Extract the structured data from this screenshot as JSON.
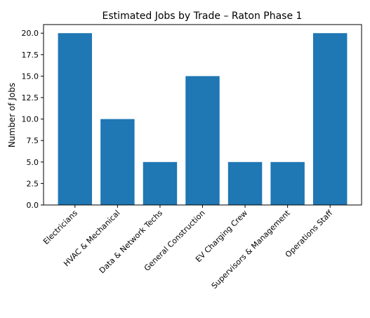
{
  "chart_data": {
    "type": "bar",
    "title": "Estimated Jobs by Trade – Raton Phase 1",
    "xlabel": "",
    "ylabel": "Number of Jobs",
    "categories": [
      "Electricians",
      "HVAC & Mechanical",
      "Data & Network Techs",
      "General Construction",
      "EV Charging Crew",
      "Supervisors & Management",
      "Operations Staff"
    ],
    "values": [
      20,
      10,
      5,
      15,
      5,
      5,
      20
    ],
    "ylim": [
      0,
      21
    ],
    "yticks": [
      "0.0",
      "2.5",
      "5.0",
      "7.5",
      "10.0",
      "12.5",
      "15.0",
      "17.5",
      "20.0"
    ],
    "bar_color": "#1f77b4",
    "grid": false,
    "legend": "none"
  }
}
